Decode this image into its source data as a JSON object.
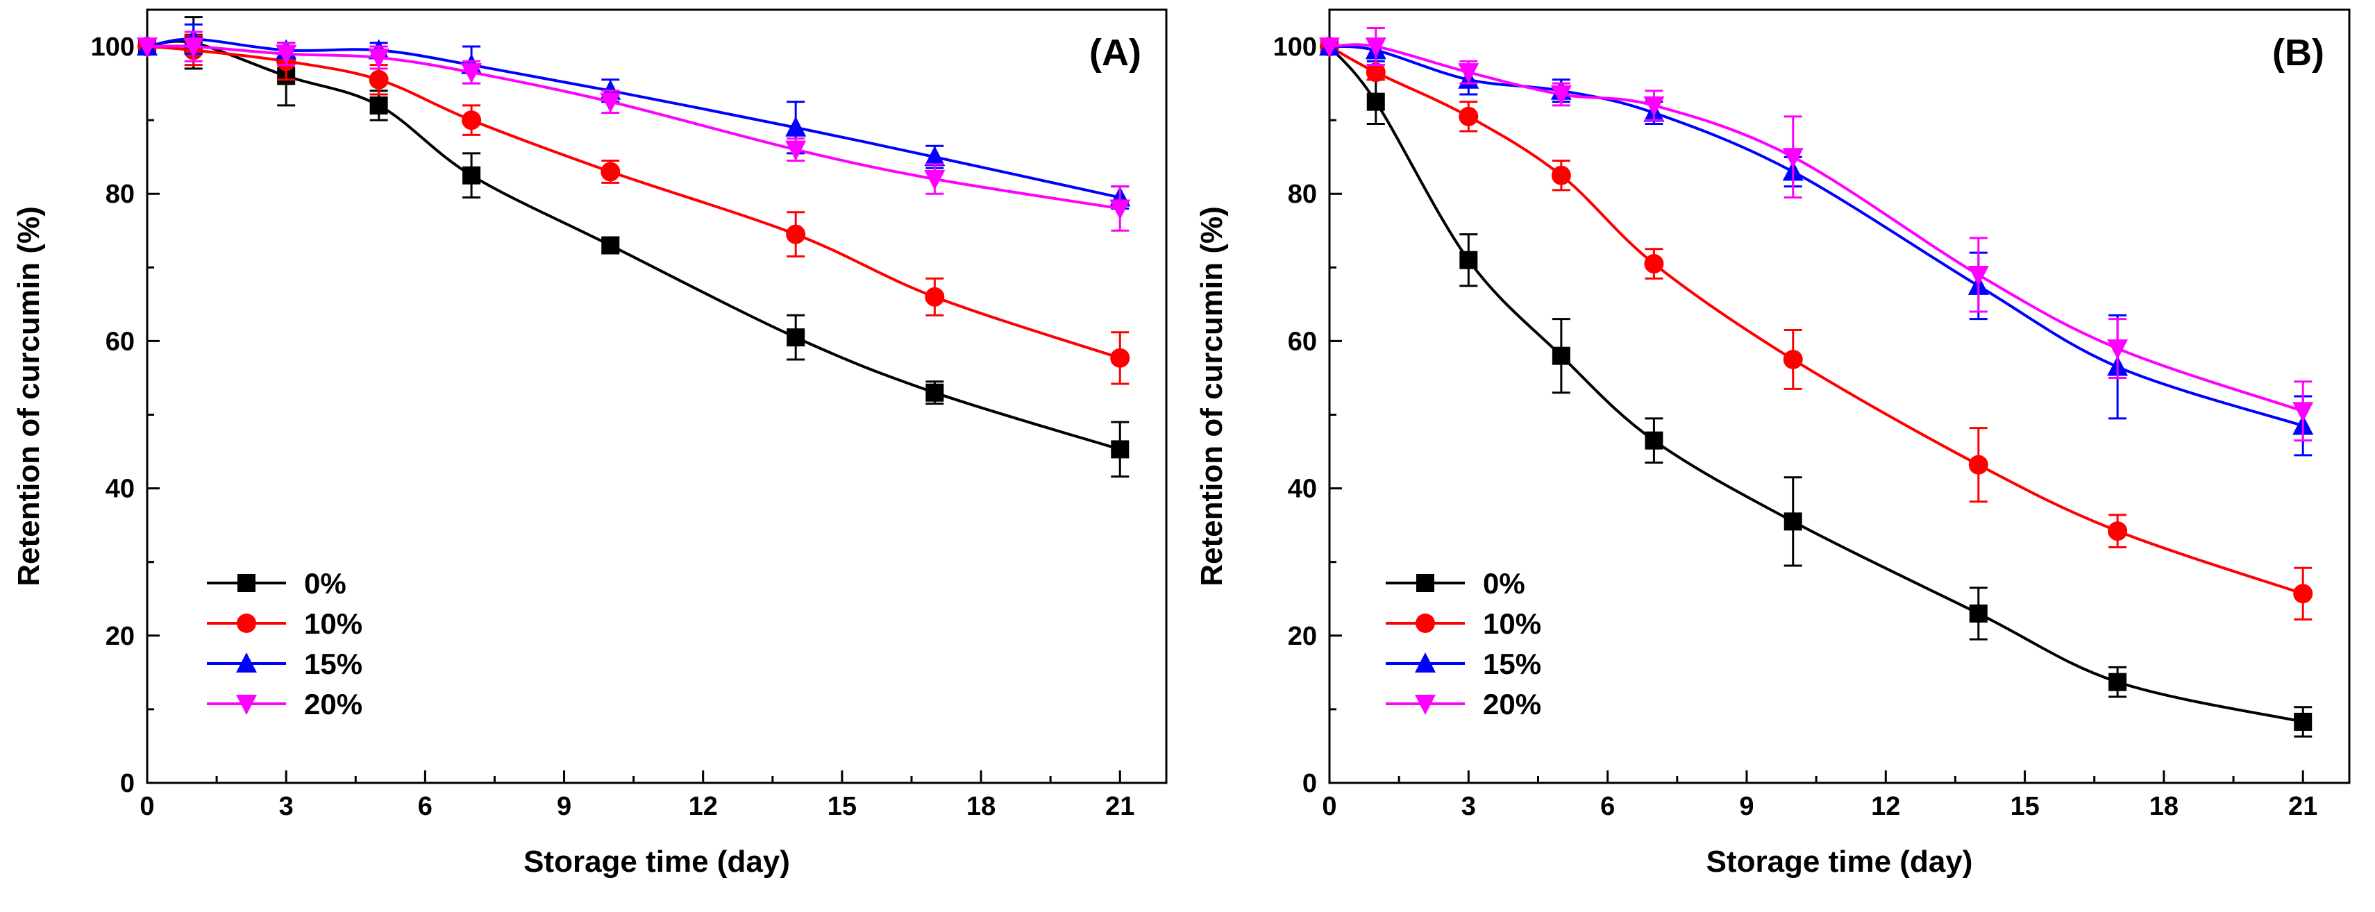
{
  "chart_data": [
    {
      "type": "line",
      "panel_label": "(A)",
      "xlabel": "Storage time (day)",
      "ylabel": "Retention of curcumin (%)",
      "xlim": [
        0,
        22
      ],
      "ylim": [
        0,
        105
      ],
      "xticks": [
        0,
        3,
        6,
        9,
        12,
        15,
        18,
        21
      ],
      "yticks": [
        0,
        20,
        40,
        60,
        80,
        100
      ],
      "legend_position": "bottom-left",
      "x": [
        0,
        1,
        3,
        5,
        7,
        10,
        14,
        17,
        21
      ],
      "series": [
        {
          "name": "0%",
          "color": "#000000",
          "marker": "square",
          "values": [
            100,
            100.5,
            96,
            92,
            82.5,
            73,
            60.5,
            53,
            45.3
          ],
          "errors": [
            0,
            3.5,
            4,
            2,
            3,
            1,
            3,
            1.5,
            3.7
          ]
        },
        {
          "name": "10%",
          "color": "#ff0000",
          "marker": "circle",
          "values": [
            100,
            99.5,
            98,
            95.5,
            90,
            83,
            74.5,
            66,
            57.7
          ],
          "errors": [
            0,
            2,
            2.5,
            2,
            2,
            1.5,
            3,
            2.5,
            3.5
          ]
        },
        {
          "name": "15%",
          "color": "#0000ff",
          "marker": "triangle-up",
          "values": [
            100,
            101,
            99.5,
            99.5,
            97.5,
            94,
            89,
            85,
            79.5
          ],
          "errors": [
            0,
            2,
            1,
            1,
            2.5,
            1.5,
            3.5,
            1.5,
            1.5
          ]
        },
        {
          "name": "20%",
          "color": "#ff00ff",
          "marker": "triangle-down",
          "values": [
            100,
            100,
            99,
            98.5,
            96.5,
            92.5,
            86,
            82,
            78
          ],
          "errors": [
            0,
            2,
            1.5,
            1.5,
            1.5,
            1.5,
            1.5,
            2,
            3
          ]
        }
      ]
    },
    {
      "type": "line",
      "panel_label": "(B)",
      "xlabel": "Storage time (day)",
      "ylabel": "Retention of curcumin (%)",
      "xlim": [
        0,
        22
      ],
      "ylim": [
        0,
        105
      ],
      "xticks": [
        0,
        3,
        6,
        9,
        12,
        15,
        18,
        21
      ],
      "yticks": [
        0,
        20,
        40,
        60,
        80,
        100
      ],
      "legend_position": "bottom-left",
      "x": [
        0,
        1,
        3,
        5,
        7,
        10,
        14,
        17,
        21
      ],
      "series": [
        {
          "name": "0%",
          "color": "#000000",
          "marker": "square",
          "values": [
            100,
            92.5,
            71,
            58,
            46.5,
            35.5,
            23,
            13.7,
            8.3
          ],
          "errors": [
            0,
            3,
            3.5,
            5,
            3,
            6,
            3.5,
            2,
            2
          ]
        },
        {
          "name": "10%",
          "color": "#ff0000",
          "marker": "circle",
          "values": [
            100,
            96.5,
            90.5,
            82.5,
            70.5,
            57.5,
            43.2,
            34.2,
            25.7
          ],
          "errors": [
            0,
            1,
            2,
            2,
            2,
            4,
            5,
            2.2,
            3.5
          ]
        },
        {
          "name": "15%",
          "color": "#0000ff",
          "marker": "triangle-up",
          "values": [
            100,
            99.5,
            95.5,
            94,
            91,
            83,
            67.5,
            56.5,
            48.5
          ],
          "errors": [
            0,
            1.5,
            2,
            1.5,
            1.5,
            2,
            4.5,
            7,
            4
          ]
        },
        {
          "name": "20%",
          "color": "#ff00ff",
          "marker": "triangle-down",
          "values": [
            100,
            100,
            96.5,
            93.5,
            92,
            85,
            69,
            59,
            50.5
          ],
          "errors": [
            0,
            2.5,
            1.5,
            1.5,
            2,
            5.5,
            5,
            4,
            4
          ]
        }
      ]
    }
  ]
}
